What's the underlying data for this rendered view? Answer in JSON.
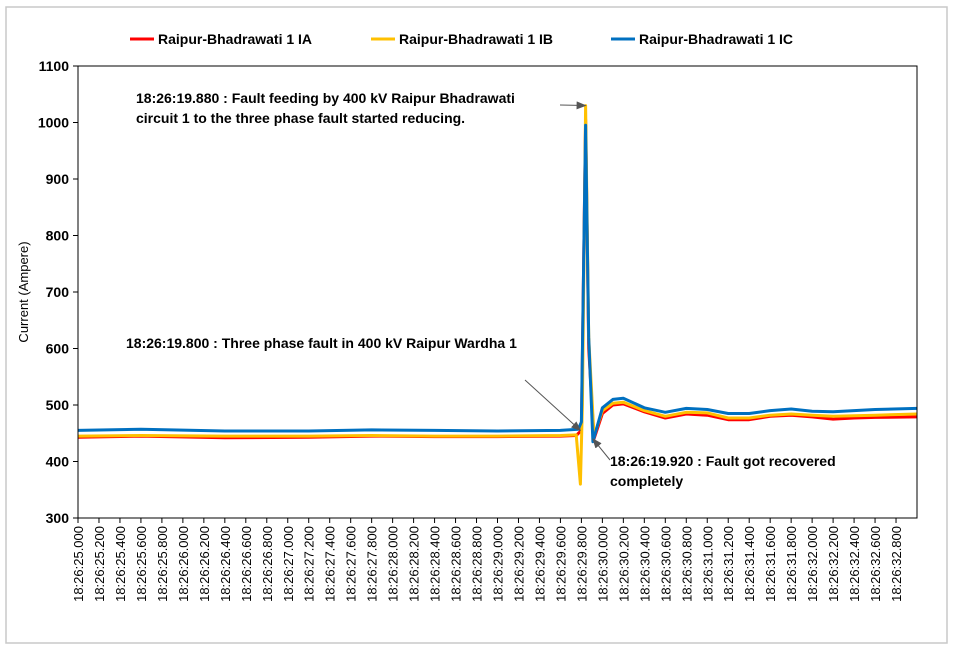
{
  "chart_data": {
    "type": "line",
    "title": "",
    "xlabel": "",
    "ylabel": "Current (Ampere)",
    "ylim": [
      300,
      1100
    ],
    "yticks": [
      300,
      400,
      500,
      600,
      700,
      800,
      900,
      1000,
      1100
    ],
    "xlim": [
      "18:26:25.000",
      "18:26:33.000"
    ],
    "grid": false,
    "legend_position": "top",
    "x_tick_labels": [
      "18:26:25.000",
      "18:26:25.200",
      "18:26:25.400",
      "18:26:25.600",
      "18:26:25.800",
      "18:26:26.000",
      "18:26:26.200",
      "18:26:26.400",
      "18:26:26.600",
      "18:26:26.800",
      "18:26:27.000",
      "18:26:27.200",
      "18:26:27.400",
      "18:26:27.600",
      "18:26:27.800",
      "18:26:28.000",
      "18:26:28.200",
      "18:26:28.400",
      "18:26:28.600",
      "18:26:28.800",
      "18:26:29.000",
      "18:26:29.200",
      "18:26:29.400",
      "18:26:29.600",
      "18:26:29.800",
      "18:26:30.000",
      "18:26:30.200",
      "18:26:30.400",
      "18:26:30.600",
      "18:26:30.800",
      "18:26:31.000",
      "18:26:31.200",
      "18:26:31.400",
      "18:26:31.600",
      "18:26:31.800",
      "18:26:32.000",
      "18:26:32.200",
      "18:26:32.400",
      "18:26:32.600",
      "18:26:32.800"
    ],
    "series": [
      {
        "name": "Raipur-Bhadrawati 1 IA",
        "color": "#ff0000",
        "points": [
          [
            "18:26:25.000",
            443
          ],
          [
            "18:26:25.600",
            445
          ],
          [
            "18:26:26.400",
            442
          ],
          [
            "18:26:27.200",
            443
          ],
          [
            "18:26:27.800",
            445
          ],
          [
            "18:26:28.400",
            444
          ],
          [
            "18:26:29.000",
            444
          ],
          [
            "18:26:29.600",
            445
          ],
          [
            "18:26:29.750",
            446
          ],
          [
            "18:26:29.800",
            455
          ],
          [
            "18:26:29.840",
            1005
          ],
          [
            "18:26:29.870",
            600
          ],
          [
            "18:26:29.920",
            440
          ],
          [
            "18:26:30.000",
            485
          ],
          [
            "18:26:30.100",
            500
          ],
          [
            "18:26:30.200",
            502
          ],
          [
            "18:26:30.400",
            488
          ],
          [
            "18:26:30.600",
            477
          ],
          [
            "18:26:30.800",
            484
          ],
          [
            "18:26:31.000",
            482
          ],
          [
            "18:26:31.200",
            474
          ],
          [
            "18:26:31.400",
            474
          ],
          [
            "18:26:31.600",
            480
          ],
          [
            "18:26:31.800",
            482
          ],
          [
            "18:26:32.000",
            479
          ],
          [
            "18:26:32.200",
            475
          ],
          [
            "18:26:32.400",
            477
          ],
          [
            "18:26:32.600",
            478
          ],
          [
            "18:26:33.000",
            479
          ]
        ]
      },
      {
        "name": "Raipur-Bhadrawati 1 IB",
        "color": "#ffc000",
        "points": [
          [
            "18:26:25.000",
            445
          ],
          [
            "18:26:25.600",
            446
          ],
          [
            "18:26:26.400",
            445
          ],
          [
            "18:26:27.200",
            445
          ],
          [
            "18:26:27.800",
            446
          ],
          [
            "18:26:28.400",
            445
          ],
          [
            "18:26:29.000",
            445
          ],
          [
            "18:26:29.600",
            446
          ],
          [
            "18:26:29.750",
            447
          ],
          [
            "18:26:29.790",
            360
          ],
          [
            "18:26:29.810",
            500
          ],
          [
            "18:26:29.840",
            1030
          ],
          [
            "18:26:29.870",
            620
          ],
          [
            "18:26:29.920",
            445
          ],
          [
            "18:26:30.000",
            490
          ],
          [
            "18:26:30.100",
            503
          ],
          [
            "18:26:30.200",
            505
          ],
          [
            "18:26:30.400",
            490
          ],
          [
            "18:26:30.600",
            480
          ],
          [
            "18:26:30.800",
            487
          ],
          [
            "18:26:31.000",
            486
          ],
          [
            "18:26:31.200",
            477
          ],
          [
            "18:26:31.400",
            477
          ],
          [
            "18:26:31.600",
            482
          ],
          [
            "18:26:31.800",
            484
          ],
          [
            "18:26:32.000",
            482
          ],
          [
            "18:26:32.200",
            480
          ],
          [
            "18:26:32.400",
            481
          ],
          [
            "18:26:32.600",
            482
          ],
          [
            "18:26:33.000",
            484
          ]
        ]
      },
      {
        "name": "Raipur-Bhadrawati 1 IC",
        "color": "#0070c0",
        "points": [
          [
            "18:26:25.000",
            455
          ],
          [
            "18:26:25.600",
            457
          ],
          [
            "18:26:26.400",
            454
          ],
          [
            "18:26:27.200",
            454
          ],
          [
            "18:26:27.800",
            456
          ],
          [
            "18:26:28.400",
            455
          ],
          [
            "18:26:29.000",
            454
          ],
          [
            "18:26:29.600",
            455
          ],
          [
            "18:26:29.770",
            457
          ],
          [
            "18:26:29.800",
            470
          ],
          [
            "18:26:29.840",
            995
          ],
          [
            "18:26:29.870",
            620
          ],
          [
            "18:26:29.910",
            435
          ],
          [
            "18:26:30.000",
            495
          ],
          [
            "18:26:30.100",
            510
          ],
          [
            "18:26:30.200",
            512
          ],
          [
            "18:26:30.400",
            495
          ],
          [
            "18:26:30.600",
            487
          ],
          [
            "18:26:30.800",
            494
          ],
          [
            "18:26:31.000",
            492
          ],
          [
            "18:26:31.200",
            485
          ],
          [
            "18:26:31.400",
            485
          ],
          [
            "18:26:31.600",
            490
          ],
          [
            "18:26:31.800",
            493
          ],
          [
            "18:26:32.000",
            489
          ],
          [
            "18:26:32.200",
            488
          ],
          [
            "18:26:32.400",
            490
          ],
          [
            "18:26:32.600",
            492
          ],
          [
            "18:26:33.000",
            494
          ]
        ]
      }
    ],
    "annotations": [
      {
        "text": "18:26:19.880 : Fault feeding by 400 kV Raipur Bhadrawati circuit 1 to the three phase fault started reducing.",
        "lines": [
          "18:26:19.880 : Fault feeding by 400 kV Raipur Bhadrawati",
          "circuit 1 to the three phase fault started reducing."
        ],
        "arrow_to": [
          "18:26:29.840",
          1030
        ]
      },
      {
        "text": "18:26:19.800 : Three phase fault in 400 kV  Raipur Wardha 1",
        "lines": [
          "18:26:19.800 : Three phase fault in 400 kV  Raipur Wardha 1"
        ],
        "arrow_to": [
          "18:26:29.790",
          455
        ]
      },
      {
        "text": "18:26:19.920 : Fault got recovered completely",
        "lines": [
          "18:26:19.920 : Fault got recovered",
          "completely"
        ],
        "arrow_to": [
          "18:26:29.910",
          440
        ]
      }
    ]
  }
}
